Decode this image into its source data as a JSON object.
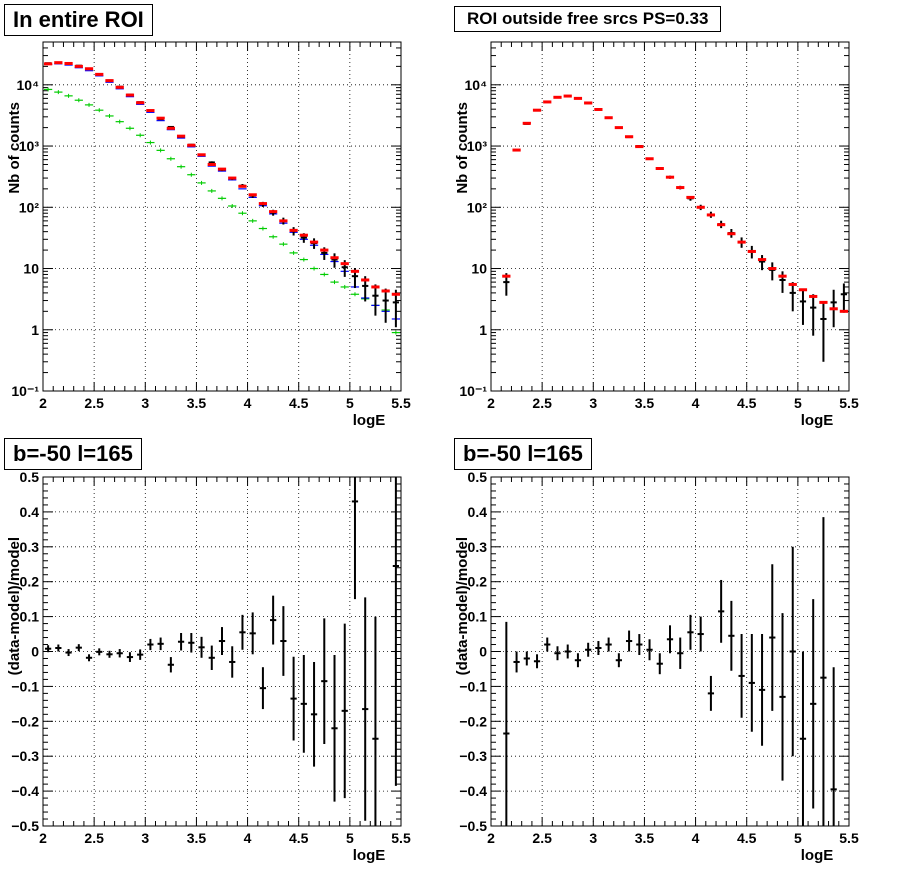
{
  "colors": {
    "data": "#000000",
    "model_total": "#ff0000",
    "model_blue": "#0000ff",
    "model_green": "#00cc00",
    "grid": "#000000"
  },
  "panels": {
    "tl": {
      "title": "In entire ROI"
    },
    "tr": {
      "title": "ROI outside free srcs PS=0.33"
    },
    "bl": {
      "title": "b=-50 l=165"
    },
    "br": {
      "title": "b=-50 l=165"
    }
  },
  "chart_data": [
    {
      "type": "scatter",
      "title": "In entire ROI",
      "xlabel": "logE",
      "ylabel": "Nb of counts",
      "xlim": [
        2,
        5.5
      ],
      "ylim": [
        0.1,
        50000
      ],
      "yscale": "log",
      "xticks": [
        "2",
        "2.5",
        "3",
        "3.5",
        "4",
        "4.5",
        "5",
        "5.5"
      ],
      "yticks": [
        "10⁻¹",
        "1",
        "10",
        "10²",
        "10³",
        "10⁴"
      ],
      "grid": true,
      "x": [
        2.05,
        2.15,
        2.25,
        2.35,
        2.45,
        2.55,
        2.65,
        2.75,
        2.85,
        2.95,
        3.05,
        3.15,
        3.25,
        3.35,
        3.45,
        3.55,
        3.65,
        3.75,
        3.85,
        3.95,
        4.05,
        4.15,
        4.25,
        4.35,
        4.45,
        4.55,
        4.65,
        4.75,
        4.85,
        4.95,
        5.05,
        5.15,
        5.25,
        5.35,
        5.45
      ],
      "series": [
        {
          "values": [
            22500,
            23000,
            22000,
            20500,
            18200,
            15000,
            11800,
            9300,
            6900,
            5200,
            3800,
            2750,
            2050,
            1420,
            1050,
            720,
            540,
            410,
            295,
            225,
            155,
            112,
            82,
            60,
            41,
            32,
            26,
            18,
            14,
            10.5,
            7.5,
            5.2,
            3.6,
            3.0,
            2.8
          ],
          "errors": [
            150,
            150,
            148,
            143,
            135,
            122,
            109,
            96,
            83,
            72,
            62,
            52,
            45,
            38,
            32,
            27,
            23,
            20,
            17,
            15,
            12.5,
            10.6,
            9.1,
            7.7,
            6.4,
            5.7,
            5.1,
            4.2,
            3.7,
            3.2,
            2.7,
            2.3,
            1.9,
            1.7,
            1.7
          ]
        },
        {
          "values": [
            22000,
            23000,
            22300,
            20000,
            18300,
            14800,
            11700,
            9100,
            6800,
            5100,
            3800,
            2850,
            1950,
            1450,
            1030,
            720,
            500,
            420,
            300,
            220,
            160,
            115,
            85,
            60,
            42,
            35,
            27,
            20,
            15,
            12,
            9,
            6.5,
            5,
            4.3,
            3.8
          ]
        },
        {
          "values": [
            21500,
            22000,
            21000,
            19000,
            17000,
            14000,
            11000,
            8600,
            6400,
            4800,
            3550,
            2600,
            1850,
            1350,
            970,
            680,
            470,
            390,
            280,
            200,
            145,
            106,
            78,
            55,
            39,
            30,
            24,
            17,
            13,
            9,
            5,
            3.3,
            2.5,
            2.0,
            1.5
          ]
        },
        {
          "values": [
            8400,
            7600,
            6600,
            5600,
            4700,
            3850,
            3100,
            2500,
            1950,
            1500,
            1140,
            850,
            620,
            460,
            340,
            250,
            185,
            140,
            105,
            80,
            60,
            45,
            33,
            25,
            18,
            14,
            10,
            8,
            6,
            5,
            3.8,
            3.2,
            2.5,
            2.1,
            0.9
          ]
        }
      ]
    },
    {
      "type": "scatter",
      "title": "ROI outside free srcs PS=0.33",
      "xlabel": "logE",
      "ylabel": "Nb of counts",
      "xlim": [
        2,
        5.5
      ],
      "ylim": [
        0.1,
        50000
      ],
      "yscale": "log",
      "xticks": [
        "2",
        "2.5",
        "3",
        "3.5",
        "4",
        "4.5",
        "5",
        "5.5"
      ],
      "yticks": [
        "10⁻¹",
        "1",
        "10",
        "10²",
        "10³",
        "10⁴"
      ],
      "grid": true,
      "x": [
        2.15,
        2.25,
        2.35,
        2.45,
        2.55,
        2.65,
        2.75,
        2.85,
        2.95,
        3.05,
        3.15,
        3.25,
        3.35,
        3.45,
        3.55,
        3.65,
        3.75,
        3.85,
        3.95,
        4.05,
        4.15,
        4.25,
        4.35,
        4.45,
        4.55,
        4.65,
        4.75,
        4.85,
        4.95,
        5.05,
        5.15,
        5.25,
        5.35,
        5.45
      ],
      "series": [
        {
          "values": [
            6.0,
            850,
            2300,
            3800,
            5300,
            6300,
            6500,
            6000,
            5000,
            3900,
            2900,
            2000,
            1400,
            1000,
            620,
            430,
            310,
            210,
            140,
            100,
            76,
            53,
            38,
            27,
            19,
            13,
            9.5,
            6.5,
            4.0,
            2.9,
            2.3,
            1.5,
            2.8,
            3.8
          ],
          "errors": [
            2.4,
            29,
            48,
            62,
            73,
            79,
            81,
            77,
            71,
            62,
            54,
            45,
            37,
            32,
            25,
            21,
            18,
            14,
            12,
            10,
            8.7,
            7.3,
            6.2,
            5.2,
            4.4,
            3.6,
            3.1,
            2.5,
            2.0,
            1.7,
            1.5,
            1.2,
            1.7,
            1.9
          ]
        },
        {
          "values": [
            7.5,
            860,
            2350,
            3850,
            5250,
            6250,
            6550,
            6000,
            5050,
            3950,
            2900,
            2000,
            1420,
            980,
            620,
            430,
            310,
            210,
            145,
            100,
            75,
            52,
            37,
            27,
            19,
            14,
            10,
            7.5,
            5.5,
            4.5,
            3.5,
            2.8,
            2.2,
            2.0
          ]
        }
      ]
    },
    {
      "type": "scatter",
      "title": "b=-50 l=165",
      "xlabel": "logE",
      "ylabel": "(data-model)/model",
      "xlim": [
        2,
        5.5
      ],
      "ylim": [
        -0.5,
        0.5
      ],
      "xticks": [
        "2",
        "2.5",
        "3",
        "3.5",
        "4",
        "4.5",
        "5",
        "5.5"
      ],
      "yticks": [
        "−0.5",
        "−0.4",
        "−0.3",
        "−0.2",
        "−0.1",
        "0",
        "0.1",
        "0.2",
        "0.3",
        "0.4",
        "0.5"
      ],
      "grid": true,
      "x": [
        2.05,
        2.15,
        2.25,
        2.35,
        2.45,
        2.55,
        2.65,
        2.75,
        2.85,
        2.95,
        3.05,
        3.15,
        3.25,
        3.35,
        3.45,
        3.55,
        3.65,
        3.75,
        3.85,
        3.95,
        4.05,
        4.15,
        4.25,
        4.35,
        4.45,
        4.55,
        4.65,
        4.75,
        4.85,
        4.95,
        5.05,
        5.15,
        5.25,
        5.45
      ],
      "series": [
        {
          "values": [
            0.008,
            0.01,
            -0.003,
            0.011,
            -0.018,
            -0.001,
            -0.008,
            -0.005,
            -0.016,
            -0.009,
            0.02,
            0.022,
            -0.038,
            0.028,
            0.025,
            0.012,
            -0.018,
            0.03,
            -0.03,
            0.055,
            0.052,
            -0.105,
            0.09,
            0.03,
            -0.135,
            -0.15,
            -0.18,
            -0.085,
            -0.22,
            -0.17,
            0.43,
            -0.165,
            -0.25,
            0.245
          ],
          "errors": [
            0.01,
            0.01,
            0.01,
            0.01,
            0.01,
            0.01,
            0.01,
            0.012,
            0.014,
            0.015,
            0.016,
            0.018,
            0.022,
            0.025,
            0.028,
            0.03,
            0.035,
            0.04,
            0.045,
            0.05,
            0.06,
            0.06,
            0.07,
            0.1,
            0.12,
            0.14,
            0.15,
            0.18,
            0.21,
            0.25,
            0.28,
            0.32,
            0.35,
            0.63
          ]
        }
      ]
    },
    {
      "type": "scatter",
      "title": "b=-50 l=165",
      "xlabel": "logE",
      "ylabel": "(data-model)/model",
      "xlim": [
        2,
        5.5
      ],
      "ylim": [
        -0.5,
        0.5
      ],
      "xticks": [
        "2",
        "2.5",
        "3",
        "3.5",
        "4",
        "4.5",
        "5",
        "5.5"
      ],
      "yticks": [
        "−0.5",
        "−0.4",
        "−0.3",
        "−0.2",
        "−0.1",
        "0",
        "0.1",
        "0.2",
        "0.3",
        "0.4",
        "0.5"
      ],
      "grid": true,
      "x": [
        2.15,
        2.25,
        2.35,
        2.45,
        2.55,
        2.65,
        2.75,
        2.85,
        2.95,
        3.05,
        3.15,
        3.25,
        3.35,
        3.45,
        3.55,
        3.65,
        3.75,
        3.85,
        3.95,
        4.05,
        4.15,
        4.25,
        4.35,
        4.45,
        4.55,
        4.65,
        4.75,
        4.85,
        4.95,
        5.05,
        5.15,
        5.25,
        5.35
      ],
      "series": [
        {
          "values": [
            -0.235,
            -0.03,
            -0.02,
            -0.028,
            0.02,
            -0.005,
            0.0,
            -0.025,
            0.005,
            0.01,
            0.02,
            -0.025,
            0.03,
            0.02,
            0.005,
            -0.035,
            0.035,
            -0.005,
            0.055,
            0.05,
            -0.12,
            0.115,
            0.045,
            -0.07,
            -0.09,
            -0.11,
            0.04,
            -0.13,
            0.0,
            -0.25,
            -0.15,
            -0.075,
            -0.395
          ],
          "errors": [
            0.32,
            0.03,
            0.02,
            0.02,
            0.02,
            0.02,
            0.02,
            0.02,
            0.02,
            0.02,
            0.02,
            0.02,
            0.03,
            0.03,
            0.03,
            0.03,
            0.04,
            0.045,
            0.05,
            0.05,
            0.05,
            0.09,
            0.1,
            0.12,
            0.14,
            0.16,
            0.21,
            0.24,
            0.3,
            0.25,
            0.3,
            0.46,
            0.35
          ]
        }
      ]
    }
  ]
}
